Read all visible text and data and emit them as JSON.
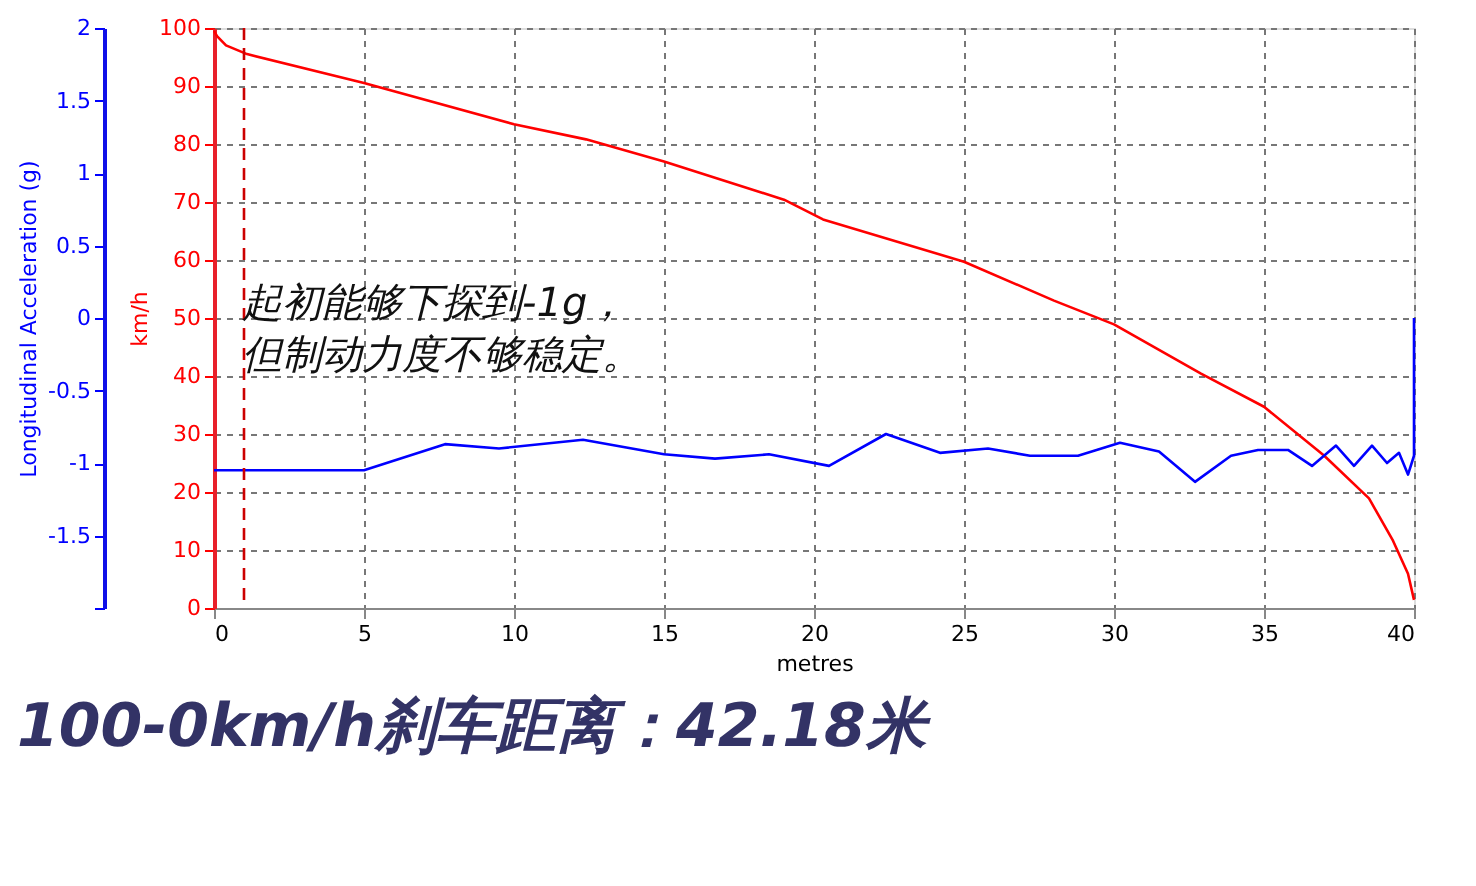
{
  "chart_data": {
    "type": "line",
    "title": "100-0km/h刹车距离：42.18米",
    "xlabel": "metres",
    "ylabel": "km/h",
    "y2label": "Longitudinal Acceleration (g)",
    "annotations": [
      "起初能够下探到-1g，但制动力度不够稳定。"
    ],
    "xlim": [
      0,
      40
    ],
    "xticks": [
      0,
      5,
      10,
      15,
      20,
      25,
      30,
      35,
      40
    ],
    "ylim": [
      0,
      100
    ],
    "yticks": [
      0,
      10,
      20,
      30,
      40,
      50,
      60,
      70,
      80,
      90,
      100
    ],
    "y2lim": [
      -2,
      2
    ],
    "y2ticks": [
      {
        "value": -2,
        "label": null
      },
      -1.5,
      -1,
      -0.5,
      0,
      0.5,
      1,
      1.5,
      2
    ],
    "grid": true,
    "marker": "none",
    "line_style": "solid",
    "ref_lines": [
      {
        "axis": "x",
        "value": 1,
        "label": null,
        "color": "#cc0000",
        "line_style": "dashed"
      }
    ],
    "series": [
      {
        "color": "#ff0000",
        "x": [
          0,
          0.1,
          0.4,
          1.1,
          5,
          10,
          12.4,
          15,
          19,
          20.3,
          25,
          28,
          30,
          32.9,
          35,
          37,
          38.5,
          39.3,
          39.8,
          40
        ],
        "values": [
          99.5,
          98.6,
          97,
          95.5,
          90.5,
          83.4,
          80.8,
          77,
          70.4,
          67,
          59.7,
          53,
          48.9,
          40.4,
          34.7,
          26.3,
          18.9,
          11.6,
          5.9,
          1.4
        ]
      },
      {
        "color": "#0000ff",
        "axis": "y2",
        "x": [
          0,
          5,
          7.7,
          9.5,
          12.3,
          15,
          16.7,
          18.5,
          20.5,
          22.4,
          24.2,
          25.8,
          27.2,
          28.8,
          30.2,
          31.5,
          32.7,
          33.9,
          34.8,
          35.8,
          36.6,
          37.4,
          38,
          38.6,
          39.1,
          39.5,
          39.8,
          40,
          40
        ],
        "values": [
          -1.05,
          -1.05,
          -0.87,
          -0.9,
          -0.84,
          -0.94,
          -0.97,
          -0.94,
          -1.02,
          -0.8,
          -0.93,
          -0.9,
          -0.95,
          -0.95,
          -0.86,
          -0.92,
          -1.13,
          -0.95,
          -0.91,
          -0.91,
          -1.02,
          -0.88,
          -1.02,
          -0.88,
          -1.0,
          -0.93,
          -1.08,
          -0.95,
          0
        ]
      }
    ]
  }
}
